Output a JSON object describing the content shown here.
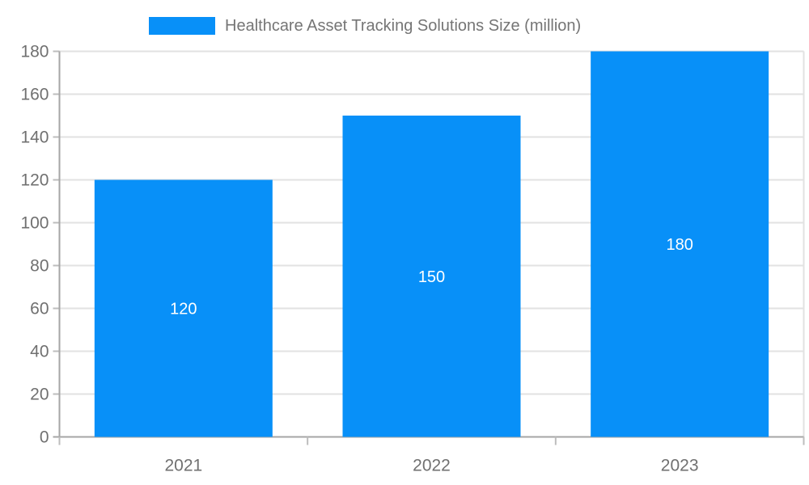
{
  "legend": {
    "label": "Healthcare Asset Tracking Solutions Size (million)"
  },
  "chart_data": {
    "type": "bar",
    "title": "Healthcare Asset Tracking Solutions Size (million)",
    "categories": [
      "2021",
      "2022",
      "2023"
    ],
    "values": [
      120,
      150,
      180
    ],
    "series": [
      {
        "name": "Healthcare Asset Tracking Solutions Size (million)",
        "values": [
          120,
          150,
          180
        ]
      }
    ],
    "value_labels": [
      "120",
      "150",
      "180"
    ],
    "xlabel": "",
    "ylabel": "",
    "ylim": [
      0,
      180
    ],
    "ytick_step": 20,
    "ytick_labels": [
      "0",
      "20",
      "40",
      "60",
      "80",
      "100",
      "120",
      "140",
      "160",
      "180"
    ],
    "grid": true,
    "legend_position": "top"
  },
  "colors": {
    "bar": "#0890F8",
    "axis_line": "#a6a6a6",
    "tick_mark": "#bdbdbd",
    "gridline": "#e2e2e2",
    "tick_text": "#707070",
    "legend_text": "#757575",
    "value_label_text": "#ffffff",
    "background": "#ffffff"
  }
}
